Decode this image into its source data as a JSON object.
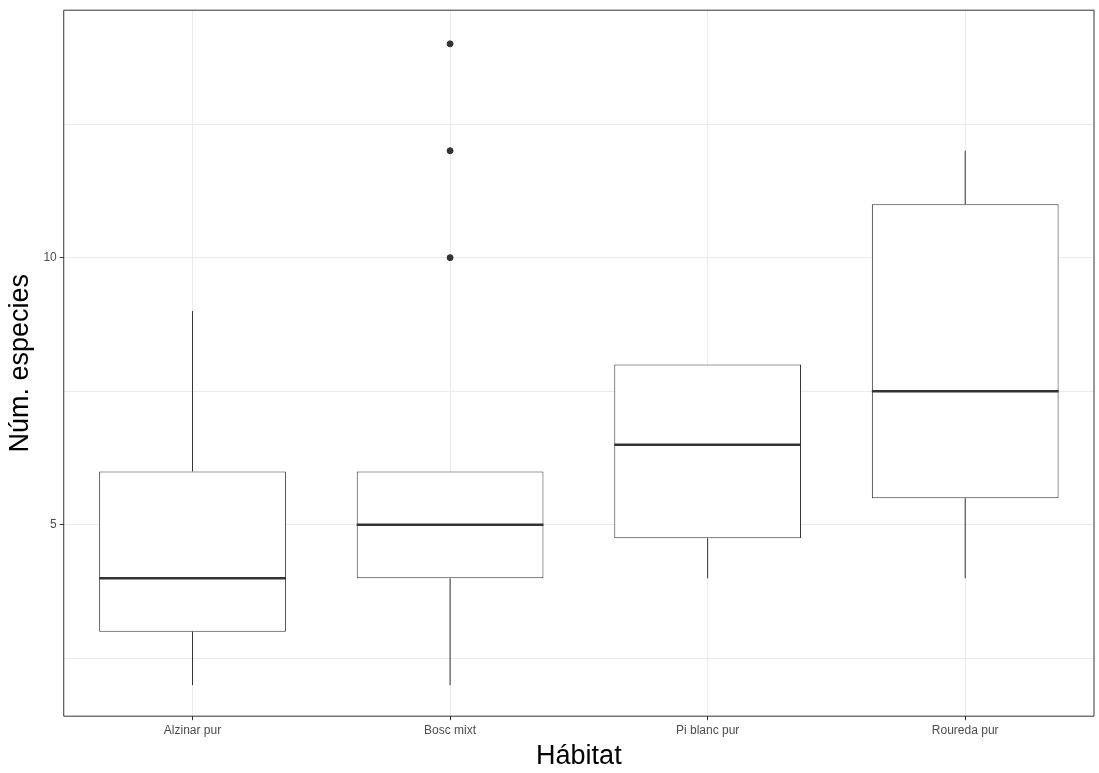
{
  "chart_data": {
    "type": "box",
    "xlabel": "Hábitat",
    "ylabel": "Núm. especies",
    "categories": [
      "Alzinar pur",
      "Bosc mixt",
      "Pi blanc pur",
      "Roureda pur"
    ],
    "boxes": [
      {
        "low": 2,
        "q1": 3,
        "median": 4,
        "q3": 6,
        "high": 9
      },
      {
        "low": 2,
        "q1": 4,
        "median": 5,
        "q3": 6,
        "high": 6,
        "outliers": [
          10,
          12,
          14
        ]
      },
      {
        "low": 4,
        "q1": 4.75,
        "median": 6.5,
        "q3": 8,
        "high": 8
      },
      {
        "low": 4,
        "q1": 5.5,
        "median": 7.5,
        "q3": 11,
        "high": 12
      }
    ],
    "ylim": [
      1.42,
      14.63
    ],
    "yticks": [
      {
        "value": 2.5,
        "label": null
      },
      5,
      {
        "value": 7.5,
        "label": null
      },
      10,
      {
        "value": 12.5,
        "label": null
      }
    ],
    "grid": true
  }
}
